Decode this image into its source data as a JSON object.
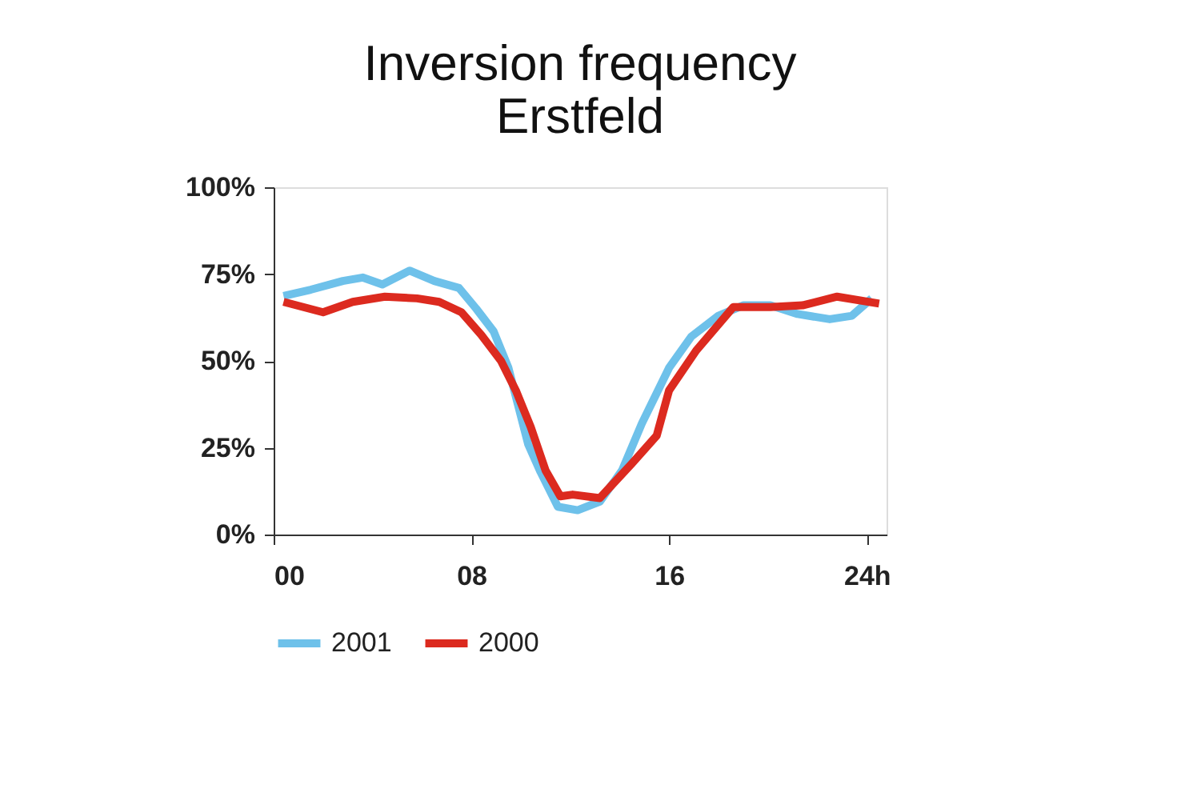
{
  "chart_data": {
    "type": "line",
    "title": [
      "Inversion frequency",
      "Erstfeld"
    ],
    "xlim": [
      0,
      24.8
    ],
    "xticks": [
      {
        "value": 0,
        "label": "00"
      },
      {
        "value": 8,
        "label": "08"
      },
      {
        "value": 16,
        "label": "16"
      },
      {
        "value": 24,
        "label": "24h"
      }
    ],
    "ylim": [
      0,
      100
    ],
    "yticks": [
      {
        "value": 0,
        "label": "0%"
      },
      {
        "value": 25,
        "label": "25%"
      },
      {
        "value": 50,
        "label": "50%"
      },
      {
        "value": 75,
        "label": "75%"
      },
      {
        "value": 100,
        "label": "100%"
      }
    ],
    "grid": false,
    "legend": "bottom",
    "marker": "none",
    "line_style": "solid",
    "series": [
      {
        "name": "2001",
        "color": "#6ec1ea",
        "x": [
          0.4,
          1.5,
          2.8,
          3.6,
          4.4,
          5.5,
          6.5,
          7.5,
          8.2,
          8.9,
          9.5,
          9.9,
          10.3,
          10.8,
          11.5,
          12.3,
          13.2,
          14.1,
          14.9,
          16,
          16.9,
          18,
          19,
          20.1,
          21.2,
          22.5,
          23.4,
          24.2
        ],
        "values": [
          68.7,
          70.5,
          73,
          74,
          72,
          76,
          73,
          71,
          65,
          58.5,
          48,
          37,
          26,
          18,
          8,
          7,
          9.5,
          18.5,
          32,
          48,
          57,
          63,
          66,
          66,
          63.5,
          62,
          63,
          68
        ]
      },
      {
        "name": "2000",
        "color": "#dc2a1f",
        "x": [
          0.4,
          2.0,
          3.2,
          4.5,
          5.8,
          6.7,
          7.6,
          8.4,
          9.2,
          9.8,
          10.4,
          11.0,
          11.6,
          12.1,
          13.2,
          14.5,
          15.5,
          16,
          17.1,
          18.6,
          20.1,
          21.4,
          22.8,
          24.5
        ],
        "values": [
          67,
          64,
          67,
          68.5,
          68,
          67,
          64,
          57.5,
          50,
          41.5,
          31,
          18.5,
          11,
          11.5,
          10.5,
          20.5,
          28.5,
          41.5,
          53,
          65.5,
          65.5,
          66,
          68.5,
          66.5
        ]
      }
    ]
  }
}
